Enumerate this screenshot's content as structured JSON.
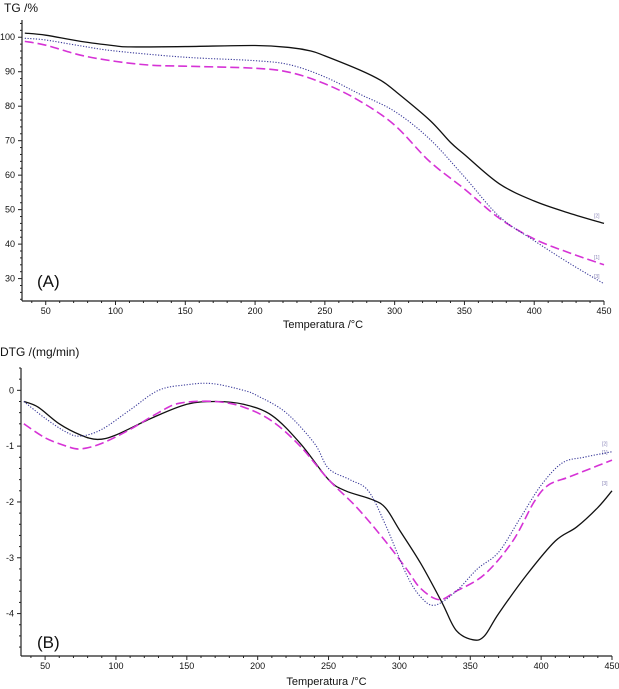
{
  "chart_data": [
    {
      "type": "line",
      "panel_label": "(A)",
      "ylabel": "TG /%",
      "xlabel": "Temperatura /°C",
      "xlim": [
        33,
        450
      ],
      "ylim": [
        23.5,
        105
      ],
      "xticks": [
        50,
        100,
        150,
        200,
        250,
        300,
        350,
        400,
        450
      ],
      "yticks": [
        30,
        40,
        50,
        60,
        70,
        80,
        90,
        100
      ],
      "grid": false,
      "series": [
        {
          "name": "[2]",
          "color": "#111111",
          "style": "solid",
          "x": [
            35,
            50,
            75,
            100,
            110,
            150,
            200,
            225,
            240,
            250,
            275,
            290,
            300,
            325,
            340,
            350,
            375,
            400,
            425,
            450
          ],
          "y": [
            101.2,
            100.6,
            98.8,
            97.5,
            97.2,
            97.3,
            97.6,
            97.0,
            96.0,
            94.6,
            90.5,
            87.5,
            84.5,
            76,
            69.5,
            66,
            57.5,
            52.5,
            49,
            46
          ]
        },
        {
          "name": "[1]",
          "color": "#d633d6",
          "style": "dashed",
          "x": [
            35,
            50,
            75,
            100,
            125,
            150,
            200,
            225,
            250,
            275,
            300,
            325,
            350,
            375,
            400,
            425,
            450
          ],
          "y": [
            98.8,
            97.7,
            94.8,
            93,
            91.9,
            91.6,
            91,
            89.8,
            86.5,
            81.5,
            74.5,
            64,
            56,
            47.5,
            41.5,
            37.5,
            34
          ]
        },
        {
          "name": "[3]",
          "color": "#3a3a9a",
          "style": "dotted",
          "x": [
            35,
            50,
            75,
            100,
            150,
            200,
            225,
            250,
            275,
            300,
            325,
            350,
            375,
            400,
            425,
            450
          ],
          "y": [
            99.7,
            99.2,
            97.5,
            96,
            94.2,
            93.2,
            92,
            88.5,
            83.5,
            78.5,
            70.5,
            59.5,
            48,
            41,
            34.5,
            28.5
          ]
        }
      ]
    },
    {
      "type": "line",
      "panel_label": "(B)",
      "ylabel": "DTG /(mg/min)",
      "xlabel": "Temperatura /°C",
      "xlim": [
        33,
        450
      ],
      "ylim": [
        -4.76,
        0.4
      ],
      "xticks": [
        50,
        100,
        150,
        200,
        250,
        300,
        350,
        400,
        450
      ],
      "yticks": [
        0,
        -1,
        -2,
        -3,
        -4
      ],
      "grid": false,
      "series": [
        {
          "name": "[3]",
          "color": "#111111",
          "style": "solid",
          "x": [
            35,
            45,
            60,
            75,
            87,
            100,
            125,
            150,
            170,
            190,
            210,
            230,
            250,
            262,
            280,
            290,
            300,
            315,
            330,
            340,
            352,
            360,
            370,
            390,
            410,
            425,
            440,
            450
          ],
          "y": [
            -0.2,
            -0.3,
            -0.6,
            -0.8,
            -0.88,
            -0.8,
            -0.5,
            -0.25,
            -0.2,
            -0.25,
            -0.45,
            -0.95,
            -1.6,
            -1.8,
            -1.95,
            -2.1,
            -2.5,
            -3.1,
            -3.8,
            -4.3,
            -4.47,
            -4.4,
            -4.0,
            -3.3,
            -2.7,
            -2.45,
            -2.1,
            -1.8
          ]
        },
        {
          "name": "[1]",
          "color": "#d633d6",
          "style": "dashed",
          "x": [
            35,
            50,
            65,
            75,
            90,
            110,
            130,
            145,
            170,
            190,
            210,
            230,
            250,
            270,
            290,
            305,
            315,
            328,
            340,
            360,
            380,
            395,
            405,
            420,
            440,
            450
          ],
          "y": [
            -0.6,
            -0.85,
            -1.0,
            -1.05,
            -0.95,
            -0.7,
            -0.4,
            -0.23,
            -0.2,
            -0.3,
            -0.55,
            -1.0,
            -1.6,
            -2.1,
            -2.7,
            -3.2,
            -3.55,
            -3.75,
            -3.6,
            -3.3,
            -2.7,
            -2.0,
            -1.7,
            -1.55,
            -1.35,
            -1.25
          ]
        },
        {
          "name": "[2]",
          "color": "#3a3a9a",
          "style": "dotted",
          "x": [
            35,
            50,
            65,
            75,
            90,
            110,
            130,
            150,
            168,
            190,
            200,
            220,
            240,
            250,
            265,
            278,
            290,
            305,
            315,
            325,
            340,
            355,
            370,
            385,
            400,
            415,
            430,
            450
          ],
          "y": [
            -0.2,
            -0.5,
            -0.75,
            -0.82,
            -0.7,
            -0.35,
            0.0,
            0.1,
            0.12,
            0.0,
            -0.1,
            -0.4,
            -0.95,
            -1.4,
            -1.6,
            -1.8,
            -2.4,
            -3.3,
            -3.7,
            -3.85,
            -3.6,
            -3.2,
            -2.9,
            -2.3,
            -1.7,
            -1.3,
            -1.2,
            -1.1
          ]
        }
      ]
    }
  ]
}
